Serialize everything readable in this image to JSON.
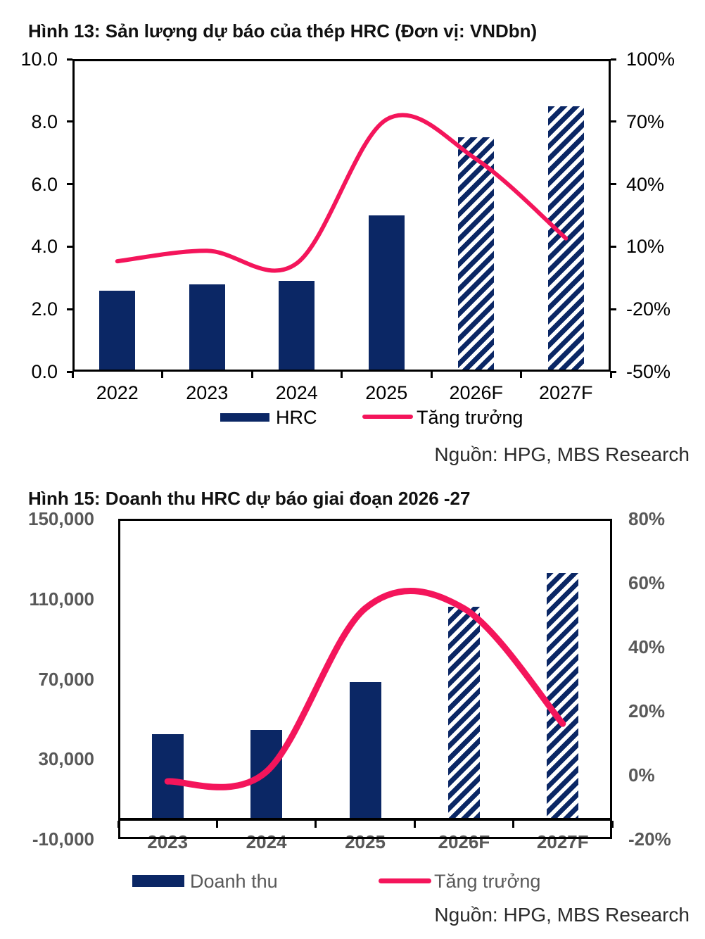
{
  "colors": {
    "bar_navy": "#0B2765",
    "line_red": "#F4155B",
    "axis_black": "#000000",
    "axis_gray": "#595959",
    "title_color": "#111111",
    "source_color": "#2B2B2B",
    "background": "#FFFFFF"
  },
  "charts": [
    {
      "title": "Hình 13: Sản lượng dự báo của thép HRC (Đơn vị: VNDbn)",
      "source": "Nguồn: HPG, MBS Research",
      "legend": [
        {
          "label": "HRC",
          "swatch": "bar"
        },
        {
          "label": "Tăng trưởng",
          "swatch": "line"
        }
      ],
      "chart_data": {
        "type": "bar+line combo",
        "categories": [
          "2022",
          "2023",
          "2024",
          "2025",
          "2026F",
          "2027F"
        ],
        "series": [
          {
            "name": "HRC",
            "type": "bar",
            "axis": "left",
            "values": [
              2.6,
              2.8,
              2.9,
              5.0,
              7.5,
              8.5
            ],
            "forecast_hatched": [
              false,
              false,
              false,
              false,
              true,
              true
            ]
          },
          {
            "name": "Tăng trưởng",
            "type": "line",
            "axis": "right",
            "values": [
              3,
              8,
              2,
              71,
              52,
              14
            ]
          }
        ],
        "left_axis": {
          "min": 0,
          "max": 10,
          "tick_labels": [
            "10.0",
            "8.0",
            "6.0",
            "4.0",
            "2.0",
            "0.0"
          ]
        },
        "right_axis": {
          "min": -50,
          "max": 100,
          "tick_labels": [
            "100%",
            "70%",
            "40%",
            "10%",
            "-20%",
            "-50%"
          ]
        },
        "grid": false,
        "legend_position": "bottom"
      }
    },
    {
      "title": "Hình 15: Doanh thu HRC dự báo giai đoạn 2026 -27",
      "source": "Nguồn: HPG, MBS Research",
      "legend": [
        {
          "label": "Doanh thu",
          "swatch": "bar"
        },
        {
          "label": "Tăng trưởng",
          "swatch": "line"
        }
      ],
      "chart_data": {
        "type": "bar+line combo",
        "categories": [
          "2023",
          "2024",
          "2025",
          "2026F",
          "2027F"
        ],
        "series": [
          {
            "name": "Doanh thu",
            "type": "bar",
            "axis": "left",
            "values": [
              42500,
              44500,
              68500,
              106000,
              123000
            ],
            "forecast_hatched": [
              false,
              false,
              false,
              true,
              true
            ]
          },
          {
            "name": "Tăng trưởng",
            "type": "line",
            "axis": "right",
            "values": [
              -2,
              1,
              52,
              52,
              16
            ]
          }
        ],
        "left_axis": {
          "min": -10000,
          "max": 150000,
          "tick_labels": [
            "150,000",
            "110,000",
            "70,000",
            "30,000",
            "-10,000"
          ]
        },
        "right_axis": {
          "min": -20,
          "max": 80,
          "tick_labels": [
            "80%",
            "60%",
            "40%",
            "20%",
            "0%",
            "-20%"
          ]
        },
        "grid": false,
        "legend_position": "bottom"
      }
    }
  ]
}
